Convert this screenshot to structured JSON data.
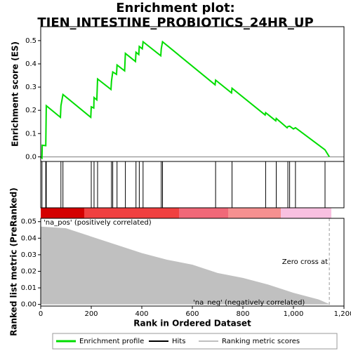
{
  "chart_data": [
    {
      "type": "line",
      "title": "Enrichment plot: TIEN_INTESTINE_PROBIOTICS_24HR_UP",
      "y_label": "Enrichment score (ES)",
      "xlim": [
        0,
        1200
      ],
      "ylim": [
        -0.02,
        0.56
      ],
      "yticks": [
        {
          "value": 0,
          "label": "0.0"
        },
        0.1,
        0.2,
        0.3,
        0.4,
        0.5
      ],
      "x": [
        0,
        5,
        6,
        20,
        21,
        22,
        78,
        80,
        88,
        198,
        200,
        210,
        211,
        222,
        225,
        278,
        280,
        285,
        300,
        302,
        332,
        335,
        375,
        377,
        388,
        390,
        402,
        405,
        475,
        477,
        482,
        690,
        692,
        755,
        757,
        888,
        890,
        930,
        932,
        975,
        978,
        985,
        1000,
        1008,
        1125,
        1142
      ],
      "series": [
        {
          "name": "Enrichment profile",
          "color": "#00dd00",
          "values": [
            0,
            -0.005,
            0.05,
            0.048,
            0.13,
            0.22,
            0.17,
            0.22,
            0.268,
            0.17,
            0.215,
            0.21,
            0.255,
            0.245,
            0.335,
            0.29,
            0.325,
            0.365,
            0.355,
            0.395,
            0.37,
            0.445,
            0.41,
            0.45,
            0.44,
            0.475,
            0.465,
            0.495,
            0.435,
            0.465,
            0.495,
            0.31,
            0.33,
            0.275,
            0.295,
            0.18,
            0.19,
            0.155,
            0.165,
            0.125,
            0.13,
            0.132,
            0.12,
            0.125,
            0.03,
            0.0
          ]
        }
      ]
    },
    {
      "type": "hits",
      "xlim": [
        0,
        1200
      ],
      "x": [
        5,
        20,
        22,
        80,
        88,
        200,
        211,
        225,
        280,
        285,
        302,
        335,
        377,
        390,
        405,
        477,
        482,
        692,
        757,
        890,
        932,
        978,
        985,
        1008,
        1125
      ],
      "series": [
        {
          "name": "Hits",
          "color": "#000000"
        }
      ]
    },
    {
      "type": "area",
      "y_label": "Ranked list metric (PreRanked)",
      "x_label": "Rank in Ordered Dataset",
      "xlim": [
        0,
        1200
      ],
      "ylim": [
        -0.001,
        0.052
      ],
      "xticks": [
        0,
        200,
        400,
        600,
        800,
        {
          "value": 1000,
          "label": "1,000"
        },
        {
          "value": 1200,
          "label": "1,200"
        }
      ],
      "yticks": [
        {
          "value": 0,
          "label": "0.00"
        },
        {
          "value": 0.01,
          "label": "0.01"
        },
        {
          "value": 0.02,
          "label": "0.02"
        },
        {
          "value": 0.03,
          "label": "0.03"
        },
        {
          "value": 0.04,
          "label": "0.04"
        },
        {
          "value": 0.05,
          "label": "0.05"
        }
      ],
      "x": [
        0,
        100,
        200,
        300,
        400,
        500,
        600,
        700,
        800,
        900,
        1000,
        1100,
        1145
      ],
      "series": [
        {
          "name": "Ranking metric scores",
          "color": "#c0c0c0",
          "values": [
            0.047,
            0.046,
            0.041,
            0.036,
            0.031,
            0.027,
            0.024,
            0.019,
            0.016,
            0.012,
            0.007,
            0.003,
            0
          ]
        }
      ],
      "zero_cross": 1142,
      "annotations": [
        "'na_pos' (positively correlated)",
        "'na_neg' (negatively correlated)",
        "Zero cross at"
      ]
    }
  ]
}
